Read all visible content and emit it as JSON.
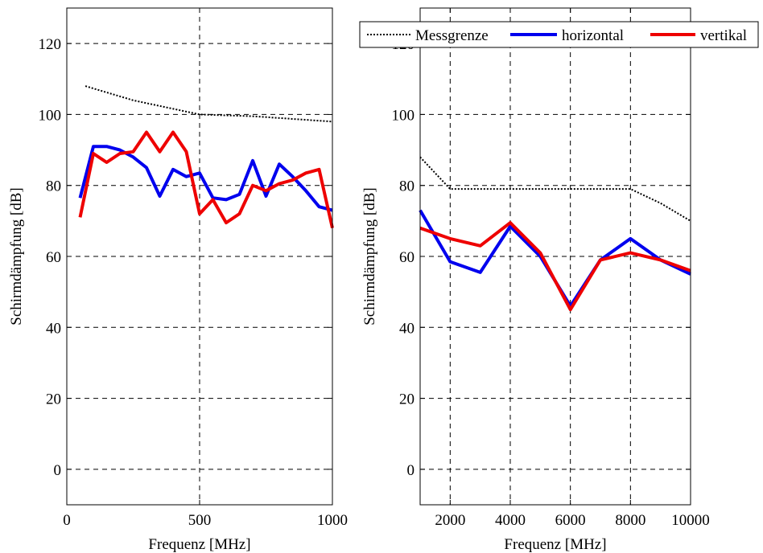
{
  "chart_data": [
    {
      "type": "line",
      "xlabel": "Frequenz [MHz]",
      "ylabel": "Schirmdämpfung [dB]",
      "xlim": [
        0,
        1000
      ],
      "ylim": [
        -10,
        130
      ],
      "xticks": [
        0,
        500,
        1000
      ],
      "yticks": [
        0,
        20,
        40,
        60,
        80,
        100,
        120
      ],
      "grid": "dashed",
      "series": [
        {
          "name": "Messgrenze",
          "color": "#000000",
          "style": "dotted",
          "x": [
            70,
            250,
            500,
            700,
            1000
          ],
          "y": [
            108,
            104,
            100,
            99.5,
            98
          ]
        },
        {
          "name": "horizontal",
          "color": "#0000ee",
          "style": "solid",
          "x": [
            50,
            100,
            150,
            200,
            250,
            300,
            350,
            400,
            450,
            500,
            550,
            600,
            650,
            700,
            750,
            800,
            850,
            900,
            950,
            1000
          ],
          "y": [
            76.5,
            91,
            91,
            90,
            88,
            85,
            77,
            84.5,
            82.5,
            83.5,
            76.5,
            76,
            77.5,
            87,
            77,
            86,
            82.5,
            78.5,
            74,
            73
          ]
        },
        {
          "name": "vertikal",
          "color": "#ee0000",
          "style": "solid",
          "x": [
            50,
            100,
            150,
            200,
            250,
            300,
            350,
            400,
            450,
            500,
            550,
            600,
            650,
            700,
            750,
            800,
            850,
            900,
            950,
            1000
          ],
          "y": [
            71,
            89,
            86.5,
            89,
            89.5,
            95,
            89.5,
            95,
            89.5,
            72,
            76,
            69.5,
            72,
            80,
            78.5,
            80.5,
            81.5,
            83.5,
            84.5,
            68
          ]
        }
      ]
    },
    {
      "type": "line",
      "xlabel": "Frequenz [MHz]",
      "ylabel": "Schirmdämpfung [dB]",
      "xlim": [
        1000,
        10000
      ],
      "ylim": [
        -10,
        130
      ],
      "xticks": [
        2000,
        4000,
        6000,
        8000,
        10000
      ],
      "yticks": [
        0,
        20,
        40,
        60,
        80,
        100,
        120
      ],
      "grid": "dashed",
      "legend": "top",
      "series": [
        {
          "name": "Messgrenze",
          "color": "#000000",
          "style": "dotted",
          "x": [
            1000,
            2000,
            3000,
            4000,
            5000,
            6000,
            7000,
            8000,
            9000,
            10000
          ],
          "y": [
            88,
            79,
            79,
            79,
            79,
            79,
            79,
            79,
            75,
            70
          ]
        },
        {
          "name": "horizontal",
          "color": "#0000ee",
          "style": "solid",
          "x": [
            1000,
            2000,
            3000,
            4000,
            5000,
            6000,
            7000,
            8000,
            9000,
            10000
          ],
          "y": [
            73,
            58.5,
            55.5,
            68.5,
            60,
            46,
            59,
            65,
            59,
            55
          ]
        },
        {
          "name": "vertikal",
          "color": "#ee0000",
          "style": "solid",
          "x": [
            1000,
            2000,
            3000,
            4000,
            5000,
            6000,
            7000,
            8000,
            9000,
            10000
          ],
          "y": [
            68,
            65,
            63,
            69.5,
            61,
            45,
            59,
            61,
            59,
            56
          ]
        }
      ]
    }
  ]
}
